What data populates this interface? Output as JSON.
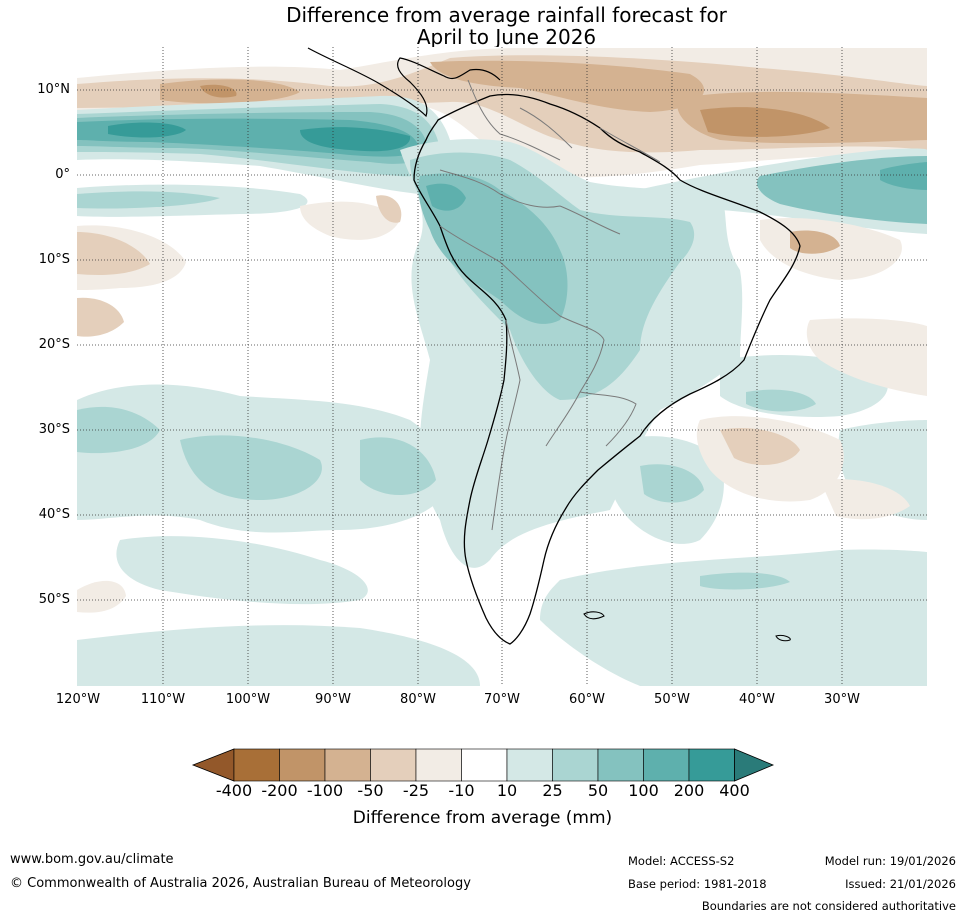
{
  "title": {
    "line1": "Difference from average rainfall forecast for",
    "line2": "April to June 2026"
  },
  "map": {
    "lat_labels": [
      "10°N",
      "0°",
      "10°S",
      "20°S",
      "30°S",
      "40°S",
      "50°S"
    ],
    "lon_labels": [
      "120°W",
      "110°W",
      "100°W",
      "90°W",
      "80°W",
      "70°W",
      "60°W",
      "50°W",
      "40°W",
      "30°W"
    ],
    "palette": {
      "n400": "#a86f37",
      "n200": "#c19468",
      "n100": "#d4b291",
      "n50": "#e4cfbb",
      "n25": "#f2ece5",
      "p10": "#d4e8e6",
      "p25": "#aad5d2",
      "p50": "#84c2bf",
      "p100": "#5eb0ad",
      "p200": "#369b98",
      "p400": "#2a7b79",
      "land_outline": "#000000",
      "borders": "#7a7a7a"
    }
  },
  "colorbar": {
    "ticks": [
      "-400",
      "-200",
      "-100",
      "-50",
      "-25",
      "-10",
      "10",
      "25",
      "50",
      "100",
      "200",
      "400"
    ],
    "colors": [
      "#a86f37",
      "#c19468",
      "#d4b291",
      "#e4cfbb",
      "#f2ece5",
      "#ffffff",
      "#d4e8e6",
      "#aad5d2",
      "#84c2bf",
      "#5eb0ad",
      "#369b98"
    ],
    "min_arrow_color": "#93582a",
    "max_arrow_color": "#2a7b79",
    "label": "Difference from average (mm)"
  },
  "footer": {
    "website": "www.bom.gov.au/climate",
    "copyright": "© Commonwealth of Australia 2026, Australian Bureau of Meteorology",
    "model": "Model: ACCESS-S2",
    "base_period": "Base period: 1981-2018",
    "model_run": "Model run: 19/01/2026",
    "issued": "Issued: 21/01/2026",
    "disclaimer": "Boundaries are not considered authoritative"
  }
}
